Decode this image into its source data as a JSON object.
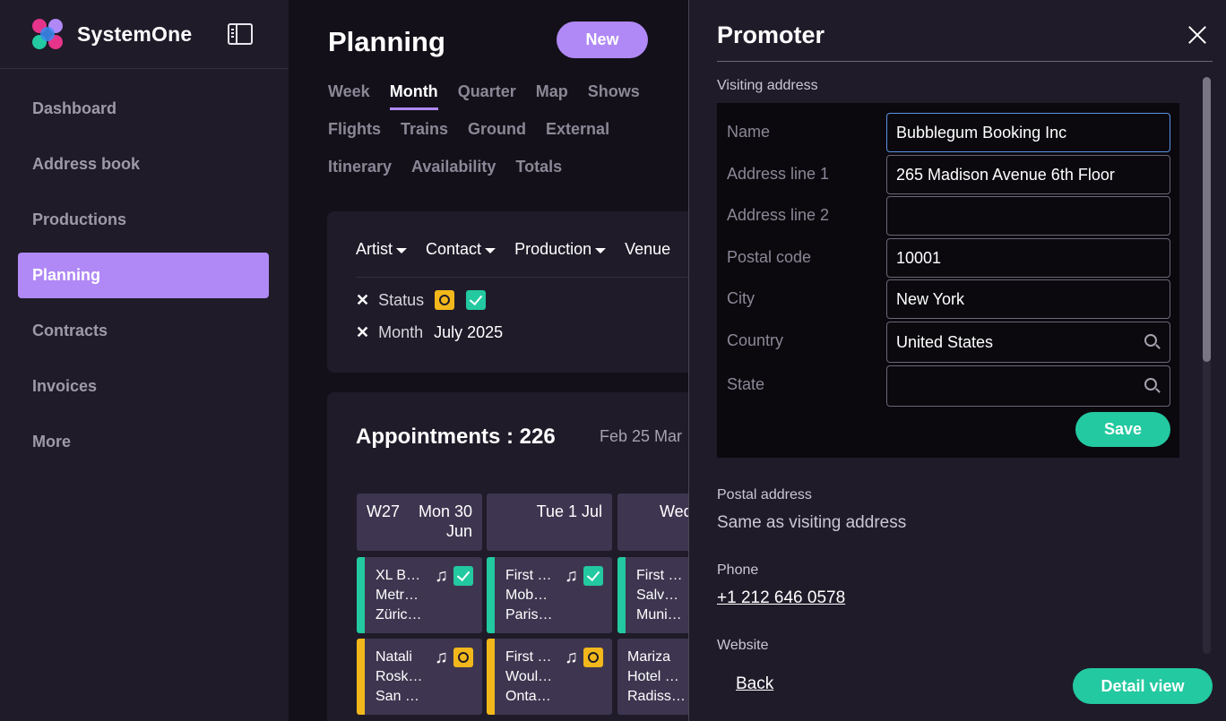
{
  "app": {
    "name": "SystemOne",
    "logo_colors": [
      "#e5348a",
      "#23c9a0",
      "#3b8cf3",
      "#b089f6"
    ]
  },
  "sidebar": {
    "items": [
      {
        "label": "Dashboard",
        "active": false
      },
      {
        "label": "Address book",
        "active": false
      },
      {
        "label": "Productions",
        "active": false
      },
      {
        "label": "Planning",
        "active": true
      },
      {
        "label": "Contracts",
        "active": false
      },
      {
        "label": "Invoices",
        "active": false
      },
      {
        "label": "More",
        "active": false
      }
    ]
  },
  "main": {
    "title": "Planning",
    "new_label": "New",
    "tabs": [
      [
        "Week",
        "Month",
        "Quarter",
        "Map",
        "Shows"
      ],
      [
        "Flights",
        "Trains",
        "Ground",
        "External"
      ],
      [
        "Itinerary",
        "Availability",
        "Totals"
      ]
    ],
    "active_tab": "Month",
    "filters": [
      "Artist",
      "Contact",
      "Production",
      "Venue"
    ],
    "chips": {
      "status_label": "Status",
      "month_label": "Month",
      "month_value": "July 2025"
    },
    "appointments_title": "Appointments : 226",
    "date_range": "Feb 25  Mar",
    "day_heads": [
      {
        "week": "W27",
        "day": "Mon 30",
        "month": "Jun"
      },
      {
        "week": "",
        "day": "Tue 1 Jul",
        "month": ""
      },
      {
        "week": "",
        "day": "Wed",
        "month": ""
      }
    ],
    "events": [
      {
        "lines": [
          "XL B…",
          "Metr…",
          "Züric…"
        ],
        "color": "#23c9a0",
        "status": "confirmed",
        "music": true
      },
      {
        "lines": [
          "First …",
          "Mob…",
          "Paris…"
        ],
        "color": "#23c9a0",
        "status": "confirmed",
        "music": true
      },
      {
        "lines": [
          "First …",
          "Salv…",
          "Muni…"
        ],
        "color": "#23c9a0",
        "status": "",
        "music": false
      },
      {
        "lines": [
          "Natali",
          "Rosk…",
          "San …"
        ],
        "color": "#f2b81b",
        "status": "option",
        "music": true
      },
      {
        "lines": [
          "First …",
          "Woul…",
          "Onta…"
        ],
        "color": "#f2b81b",
        "status": "option",
        "music": true
      },
      {
        "lines": [
          "Mariza",
          "Hotel …",
          "Radiss…"
        ],
        "color": "#3e3650",
        "status": "",
        "music": false
      }
    ]
  },
  "panel": {
    "title": "Promoter",
    "visiting_address_label": "Visiting address",
    "fields": [
      {
        "label": "Name",
        "value": "Bubblegum Booking Inc",
        "search": false
      },
      {
        "label": "Address line 1",
        "value": "265 Madison Avenue 6th Floor",
        "search": false
      },
      {
        "label": "Address line 2",
        "value": "",
        "search": false
      },
      {
        "label": "Postal code",
        "value": "10001",
        "search": false
      },
      {
        "label": "City",
        "value": "New York",
        "search": false
      },
      {
        "label": "Country",
        "value": "United States",
        "search": true
      },
      {
        "label": "State",
        "value": "",
        "search": true
      }
    ],
    "save_label": "Save",
    "postal_address_label": "Postal address",
    "postal_address_value": "Same as visiting address",
    "phone_label": "Phone",
    "phone_value": "+1 212 646 0578",
    "website_label": "Website",
    "back_label": "Back",
    "detail_view_label": "Detail view"
  }
}
